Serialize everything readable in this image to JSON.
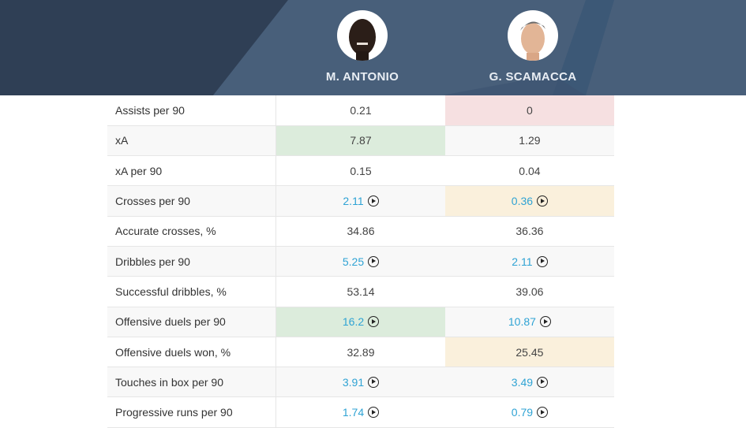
{
  "players": [
    {
      "name": "M. ANTONIO"
    },
    {
      "name": "G. SCAMACCA"
    }
  ],
  "colors": {
    "better": "#dcecdc",
    "worse": "#f6e0e1",
    "warn": "#faf0dc",
    "link": "#2fa3d4",
    "header": "#485f7a"
  },
  "rows": [
    {
      "label": "Assists per 90",
      "v1": "0.21",
      "v2": "0",
      "h1": "",
      "h2": "worse",
      "video": false
    },
    {
      "label": "xA",
      "v1": "7.87",
      "v2": "1.29",
      "h1": "better",
      "h2": "",
      "video": false
    },
    {
      "label": "xA per 90",
      "v1": "0.15",
      "v2": "0.04",
      "h1": "",
      "h2": "",
      "video": false
    },
    {
      "label": "Crosses per 90",
      "v1": "2.11",
      "v2": "0.36",
      "h1": "",
      "h2": "warn",
      "video": true
    },
    {
      "label": "Accurate crosses, %",
      "v1": "34.86",
      "v2": "36.36",
      "h1": "",
      "h2": "",
      "video": false
    },
    {
      "label": "Dribbles per 90",
      "v1": "5.25",
      "v2": "2.11",
      "h1": "",
      "h2": "",
      "video": true
    },
    {
      "label": "Successful dribbles, %",
      "v1": "53.14",
      "v2": "39.06",
      "h1": "",
      "h2": "",
      "video": false
    },
    {
      "label": "Offensive duels per 90",
      "v1": "16.2",
      "v2": "10.87",
      "h1": "better",
      "h2": "",
      "video": true
    },
    {
      "label": "Offensive duels won, %",
      "v1": "32.89",
      "v2": "25.45",
      "h1": "",
      "h2": "warn",
      "video": false
    },
    {
      "label": "Touches in box per 90",
      "v1": "3.91",
      "v2": "3.49",
      "h1": "",
      "h2": "",
      "video": true
    },
    {
      "label": "Progressive runs per 90",
      "v1": "1.74",
      "v2": "0.79",
      "h1": "",
      "h2": "",
      "video": true
    }
  ]
}
